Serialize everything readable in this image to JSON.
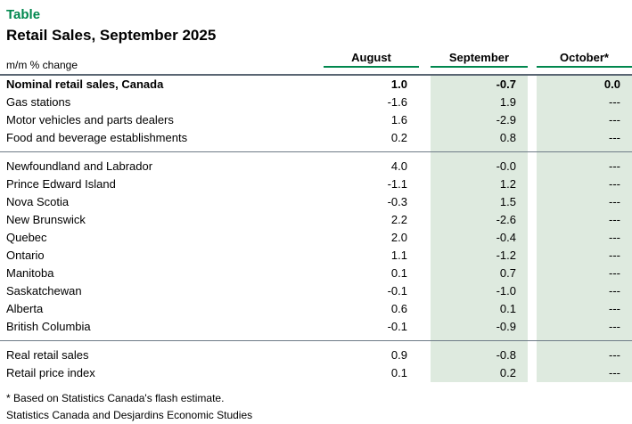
{
  "header": {
    "kicker": "Table",
    "title": "Retail Sales, September 2025",
    "unit_label": "m/m % change"
  },
  "columns": [
    "August",
    "September",
    "October*"
  ],
  "footnotes": [
    "* Based on Statistics Canada's flash estimate.",
    "Statistics Canada and Desjardins Economic Studies"
  ],
  "colors": {
    "accent_green": "#00874E",
    "column_shading": "#DEEADF",
    "header_rule": "#5A6673",
    "section_rule": "#6E7B87",
    "text": "#000000"
  },
  "chart_data": {
    "type": "table",
    "title": "Retail Sales, September 2025",
    "unit": "m/m % change",
    "columns": [
      "August",
      "September",
      "October*"
    ],
    "shaded_columns": [
      "September",
      "October*"
    ],
    "sections": [
      {
        "rows": [
          {
            "label": "Nominal retail sales, Canada",
            "bold": true,
            "values": [
              "1.0",
              "-0.7",
              "0.0"
            ]
          },
          {
            "label": "Gas stations",
            "bold": false,
            "values": [
              "-1.6",
              "1.9",
              "---"
            ]
          },
          {
            "label": "Motor vehicles and parts dealers",
            "bold": false,
            "values": [
              "1.6",
              "-2.9",
              "---"
            ]
          },
          {
            "label": "Food and beverage establishments",
            "bold": false,
            "values": [
              "0.2",
              "0.8",
              "---"
            ]
          }
        ]
      },
      {
        "rows": [
          {
            "label": "Newfoundland and Labrador",
            "bold": false,
            "values": [
              "4.0",
              "-0.0",
              "---"
            ]
          },
          {
            "label": "Prince Edward Island",
            "bold": false,
            "values": [
              "-1.1",
              "1.2",
              "---"
            ]
          },
          {
            "label": "Nova Scotia",
            "bold": false,
            "values": [
              "-0.3",
              "1.5",
              "---"
            ]
          },
          {
            "label": "New Brunswick",
            "bold": false,
            "values": [
              "2.2",
              "-2.6",
              "---"
            ]
          },
          {
            "label": "Quebec",
            "bold": false,
            "values": [
              "2.0",
              "-0.4",
              "---"
            ]
          },
          {
            "label": "Ontario",
            "bold": false,
            "values": [
              "1.1",
              "-1.2",
              "---"
            ]
          },
          {
            "label": "Manitoba",
            "bold": false,
            "values": [
              "0.1",
              "0.7",
              "---"
            ]
          },
          {
            "label": "Saskatchewan",
            "bold": false,
            "values": [
              "-0.1",
              "-1.0",
              "---"
            ]
          },
          {
            "label": "Alberta",
            "bold": false,
            "values": [
              "0.6",
              "0.1",
              "---"
            ]
          },
          {
            "label": "British Columbia",
            "bold": false,
            "values": [
              "-0.1",
              "-0.9",
              "---"
            ]
          }
        ]
      },
      {
        "rows": [
          {
            "label": "Real retail sales",
            "bold": false,
            "values": [
              "0.9",
              "-0.8",
              "---"
            ]
          },
          {
            "label": "Retail price index",
            "bold": false,
            "values": [
              "0.1",
              "0.2",
              "---"
            ]
          }
        ]
      }
    ]
  }
}
